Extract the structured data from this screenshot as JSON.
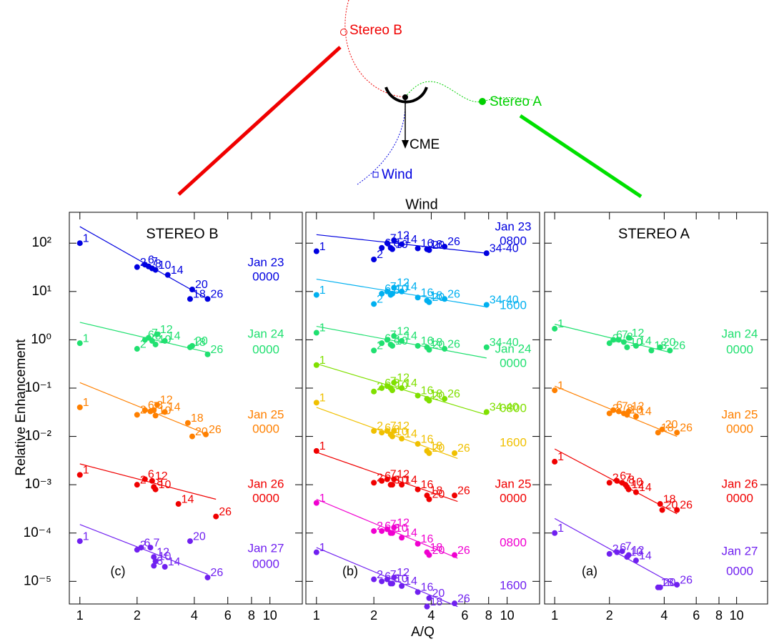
{
  "diagram": {
    "stereo_b": "Stereo B",
    "stereo_a": "Stereo A",
    "cme": "CME",
    "wind": "Wind"
  },
  "chart_data": [
    {
      "type": "scatter",
      "title": "STEREO B",
      "panel_label": "(c)",
      "y_label": "Relative Enhancement",
      "log_x": true,
      "log_y": true,
      "xlim": [
        0.88,
        14.8
      ],
      "ylim": [
        3.4e-06,
        436
      ],
      "xticks": [
        1,
        2,
        4,
        6,
        8,
        10
      ],
      "yticks": [
        {
          "value": 100,
          "label": "10²"
        },
        {
          "value": 10,
          "label": "10¹"
        },
        {
          "value": 1,
          "label": "10⁰"
        },
        {
          "value": 0.1,
          "label": "10⁻¹"
        },
        {
          "value": 0.01,
          "label": "10⁻²"
        },
        {
          "value": 0.001,
          "label": "10⁻³"
        },
        {
          "value": 0.0001,
          "label": "10⁻⁴"
        },
        {
          "value": 1e-05,
          "label": "10⁻⁵"
        }
      ],
      "series": [
        {
          "date": "Jan 23",
          "time": "0000",
          "color": "#0000e0",
          "x": [
            1,
            2,
            2.2,
            2.3,
            2.4,
            2.5,
            2.9,
            3.8,
            3.9,
            4.7
          ],
          "values": [
            100,
            32,
            36,
            33,
            30,
            28,
            22,
            7,
            11,
            7
          ],
          "point_labels": [
            "1",
            "2",
            "6",
            "7",
            "8",
            "10",
            "14",
            "18",
            "20",
            "26"
          ],
          "fit_x": [
            1,
            4.7
          ],
          "fit_values": [
            220,
            7
          ]
        },
        {
          "date": "Jan 24",
          "time": "0000",
          "color": "#20e070",
          "x": [
            1,
            2,
            2.2,
            2.3,
            2.4,
            2.5,
            2.55,
            2.8,
            3.8,
            3.9,
            4.7
          ],
          "values": [
            0.85,
            0.65,
            1.0,
            1.1,
            0.95,
            0.8,
            1.3,
            0.95,
            0.7,
            0.75,
            0.5
          ],
          "point_labels": [
            "1",
            "2",
            "6",
            "7",
            "8",
            "10",
            "12",
            "14",
            "18",
            "20",
            "26"
          ],
          "fit_x": [
            1,
            4.7
          ],
          "fit_values": [
            2.3,
            0.55
          ]
        },
        {
          "date": "Jan 25",
          "time": "0000",
          "color": "#ff8000",
          "x": [
            1,
            2,
            2.2,
            2.35,
            2.45,
            2.5,
            2.55,
            2.8,
            3.7,
            3.9,
            4.6
          ],
          "values": [
            0.04,
            0.028,
            0.035,
            0.033,
            0.035,
            0.027,
            0.045,
            0.032,
            0.019,
            0.01,
            0.011
          ],
          "point_labels": [
            "1",
            "2",
            "6",
            "7",
            "8",
            "10",
            "12",
            "14",
            "18",
            "20",
            "26"
          ],
          "fit_x": [
            1,
            4.7
          ],
          "fit_values": [
            0.13,
            0.011
          ]
        },
        {
          "date": "Jan 26",
          "time": "0000",
          "color": "#f00000",
          "x": [
            1,
            2,
            2.2,
            2.4,
            2.45,
            2.5,
            3.3,
            5.2
          ],
          "values": [
            0.0016,
            0.001,
            0.0013,
            0.0012,
            0.0009,
            0.0008,
            0.0004,
            0.00022
          ],
          "point_labels": [
            "1",
            "2",
            "6",
            "12",
            "8",
            "10",
            "14",
            "26"
          ],
          "fit_x": [
            1,
            5.2
          ],
          "fit_values": [
            0.0027,
            0.0005
          ]
        },
        {
          "date": "Jan 27",
          "time": "0000",
          "color": "#7020f0",
          "x": [
            1,
            2,
            2.1,
            2.35,
            2.45,
            2.45,
            2.5,
            2.8,
            3.8,
            4.7
          ],
          "values": [
            6.8e-05,
            4.5e-05,
            5e-05,
            5e-05,
            3.2e-05,
            2.1e-05,
            2.6e-05,
            2e-05,
            6.8e-05,
            1.2e-05
          ],
          "point_labels": [
            "1",
            "2",
            "6",
            "7",
            "12",
            "8",
            "10",
            "14",
            "20",
            "26"
          ],
          "fit_x": [
            1,
            4.7
          ],
          "fit_values": [
            0.00015,
            1.4e-05
          ]
        }
      ]
    },
    {
      "type": "scatter",
      "title": "Wind",
      "panel_label": "(b)",
      "x_label": "A/Q",
      "log_x": true,
      "log_y": true,
      "xlim": [
        0.88,
        14.8
      ],
      "ylim": [
        3.4e-06,
        436
      ],
      "xticks": [
        1,
        2,
        4,
        6,
        8,
        10
      ],
      "series": [
        {
          "date": "Jan 23",
          "time": "0800",
          "color": "#0000e0",
          "x": [
            1,
            2,
            2.2,
            2.35,
            2.45,
            2.5,
            2.55,
            2.8,
            3.4,
            3.8,
            3.9,
            4.7,
            7.8
          ],
          "values": [
            68,
            46,
            80,
            100,
            80,
            75,
            115,
            95,
            78,
            75,
            72,
            85,
            62
          ],
          "point_labels": [
            "1",
            "2",
            "6",
            "7",
            "8",
            "10",
            "12",
            "14",
            "16",
            "18",
            "20",
            "26",
            "34-40"
          ],
          "fit_x": [
            1,
            7.8
          ],
          "fit_values": [
            150,
            62
          ]
        },
        {
          "time": "1600",
          "color": "#00b0f0",
          "x": [
            1,
            2,
            2.2,
            2.35,
            2.45,
            2.5,
            2.55,
            2.8,
            3.4,
            3.8,
            3.9,
            4.7,
            7.8
          ],
          "values": [
            8.5,
            5.5,
            9,
            10,
            8.5,
            9,
            12,
            10,
            7.5,
            6.5,
            6,
            7,
            5.3
          ],
          "point_labels": [
            "1",
            "2",
            "6",
            "7",
            "8",
            "10",
            "12",
            "14",
            "16",
            "18",
            "20",
            "26",
            "34-40"
          ],
          "fit_x": [
            1,
            7.8
          ],
          "fit_values": [
            18,
            4.8
          ]
        },
        {
          "date": "Jan 24",
          "time": "0000",
          "color": "#20e070",
          "x": [
            1,
            2,
            2.2,
            2.35,
            2.45,
            2.5,
            2.55,
            2.8,
            3.4,
            3.8,
            3.9,
            4.7,
            7.8
          ],
          "values": [
            1.4,
            0.6,
            0.85,
            1.0,
            0.8,
            0.75,
            1.2,
            0.95,
            0.75,
            0.7,
            0.62,
            0.65,
            0.7
          ],
          "point_labels": [
            "1",
            "2",
            "6",
            "7",
            "8",
            "10",
            "12",
            "14",
            "16",
            "18",
            "20",
            "26",
            "34-40"
          ],
          "fit_x": [
            1,
            7.8
          ],
          "fit_values": [
            1.9,
            0.42
          ]
        },
        {
          "time": "0800",
          "color": "#80e000",
          "x": [
            1,
            2,
            2.2,
            2.35,
            2.45,
            2.5,
            2.55,
            2.8,
            3.4,
            3.8,
            3.9,
            4.7,
            7.8
          ],
          "values": [
            0.3,
            0.085,
            0.1,
            0.11,
            0.1,
            0.09,
            0.13,
            0.1,
            0.07,
            0.06,
            0.055,
            0.06,
            0.032
          ],
          "point_labels": [
            "1",
            "2",
            "6",
            "7",
            "8",
            "10",
            "12",
            "14",
            "16",
            "18",
            "20",
            "26",
            "34-40"
          ],
          "fit_x": [
            1,
            7.8
          ],
          "fit_values": [
            0.32,
            0.028
          ]
        },
        {
          "time": "1600",
          "color": "#f0c000",
          "x": [
            1,
            2,
            2.2,
            2.35,
            2.45,
            2.5,
            2.55,
            2.8,
            3.4,
            3.8,
            3.9,
            5.3
          ],
          "values": [
            0.05,
            0.013,
            0.012,
            0.013,
            0.011,
            0.01,
            0.013,
            0.009,
            0.007,
            0.005,
            0.0045,
            0.0045
          ],
          "point_labels": [
            "1",
            "2",
            "6",
            "7",
            "8",
            "10",
            "12",
            "14",
            "16",
            "18",
            "20",
            "26"
          ],
          "fit_x": [
            1,
            5.5
          ],
          "fit_values": [
            0.04,
            0.0035
          ]
        },
        {
          "date": "Jan 25",
          "time": "0000",
          "color": "#f00000",
          "x": [
            1,
            2,
            2.2,
            2.35,
            2.45,
            2.5,
            2.55,
            2.8,
            3.4,
            3.8,
            3.9,
            5.3
          ],
          "values": [
            0.005,
            0.0011,
            0.0012,
            0.0013,
            0.001,
            0.001,
            0.0013,
            0.001,
            0.0008,
            0.0006,
            0.0005,
            0.0006
          ],
          "point_labels": [
            "1",
            "2",
            "6",
            "7",
            "8",
            "10",
            "12",
            "14",
            "16",
            "18",
            "20",
            "26"
          ],
          "fit_x": [
            1,
            5.5
          ],
          "fit_values": [
            0.0047,
            0.00045
          ]
        },
        {
          "time": "0800",
          "color": "#f000d0",
          "x": [
            1,
            2,
            2.2,
            2.35,
            2.45,
            2.5,
            2.55,
            2.8,
            3.4,
            3.8,
            3.9,
            5.3
          ],
          "values": [
            0.00042,
            0.00011,
            0.00011,
            0.00012,
            0.0001,
            0.0001,
            0.00013,
            8e-05,
            6e-05,
            4e-05,
            3.5e-05,
            3.5e-05
          ],
          "point_labels": [
            "1",
            "2",
            "6",
            "7",
            "8",
            "10",
            "12",
            "14",
            "16",
            "18",
            "20",
            "26"
          ],
          "fit_x": [
            1,
            5.5
          ],
          "fit_values": [
            0.0005,
            3e-05
          ]
        },
        {
          "time": "1600",
          "color": "#7020f0",
          "x": [
            1,
            2,
            2.2,
            2.35,
            2.45,
            2.5,
            2.55,
            2.8,
            3.4,
            3.8,
            3.9,
            5.3
          ],
          "values": [
            4e-05,
            1.1e-05,
            1e-05,
            1.1e-05,
            9e-06,
            9e-06,
            1.2e-05,
            8e-06,
            6e-06,
            3e-06,
            4.5e-06,
            3.5e-06
          ],
          "point_labels": [
            "1",
            "2",
            "6",
            "7",
            "8",
            "10",
            "12",
            "14",
            "16",
            "18",
            "20",
            "26"
          ],
          "fit_x": [
            1,
            5.5
          ],
          "fit_values": [
            5e-05,
            3e-06
          ]
        }
      ]
    },
    {
      "type": "scatter",
      "title": "STEREO A",
      "panel_label": "(a)",
      "log_x": true,
      "log_y": true,
      "xlim": [
        0.88,
        14.8
      ],
      "ylim": [
        3.4e-06,
        436
      ],
      "xticks": [
        1,
        2,
        4,
        6,
        8,
        10
      ],
      "series": [
        {
          "date": "Jan 24",
          "time": "0000",
          "color": "#20e070",
          "x": [
            1,
            2,
            2.1,
            2.25,
            2.4,
            2.5,
            2.55,
            2.8,
            3.4,
            3.8,
            4.3
          ],
          "values": [
            1.7,
            0.85,
            1.0,
            1.0,
            0.9,
            0.7,
            1.1,
            0.75,
            0.6,
            0.7,
            0.6
          ],
          "point_labels": [
            "1",
            "2",
            "6",
            "7",
            "8",
            "10",
            "12",
            "14",
            "18",
            "20",
            "26"
          ],
          "fit_x": [
            1,
            4.3
          ],
          "fit_values": [
            2.1,
            0.55
          ]
        },
        {
          "date": "Jan 25",
          "time": "0000",
          "color": "#ff8000",
          "x": [
            1,
            2,
            2.1,
            2.25,
            2.4,
            2.5,
            2.55,
            2.8,
            3.7,
            3.9,
            4.7
          ],
          "values": [
            0.09,
            0.03,
            0.035,
            0.033,
            0.03,
            0.028,
            0.033,
            0.026,
            0.012,
            0.014,
            0.012
          ],
          "point_labels": [
            "1",
            "2",
            "6",
            "7",
            "8",
            "10",
            "12",
            "14",
            "18",
            "20",
            "26"
          ],
          "fit_x": [
            1,
            4.7
          ],
          "fit_values": [
            0.11,
            0.01
          ]
        },
        {
          "date": "Jan 26",
          "time": "0000",
          "color": "#f00000",
          "x": [
            1,
            2,
            2.2,
            2.35,
            2.45,
            2.5,
            2.55,
            2.8,
            3.8,
            3.9,
            4.7
          ],
          "values": [
            0.003,
            0.0011,
            0.0012,
            0.0011,
            0.001,
            0.0009,
            0.0008,
            0.0007,
            0.0004,
            0.0003,
            0.0003
          ],
          "point_labels": [
            "1",
            "2",
            "6",
            "7",
            "8",
            "10",
            "12",
            "14",
            "18",
            "20",
            "26"
          ],
          "fit_x": [
            1,
            4.7
          ],
          "fit_values": [
            0.0055,
            0.00025
          ]
        },
        {
          "date": "Jan 27",
          "time": "0000",
          "color": "#7020f0",
          "x": [
            1,
            2,
            2.2,
            2.35,
            2.5,
            2.55,
            2.8,
            3.7,
            3.8,
            4.7
          ],
          "values": [
            0.0001,
            3.7e-05,
            4e-05,
            4.2e-05,
            3.2e-05,
            3.5e-05,
            2.7e-05,
            7.5e-06,
            7.5e-06,
            8.5e-06
          ],
          "point_labels": [
            "1",
            "2",
            "6",
            "7",
            "10",
            "12",
            "14",
            "18",
            "20",
            "26"
          ],
          "fit_x": [
            1,
            4.7
          ],
          "fit_values": [
            0.0002,
            8e-06
          ]
        }
      ]
    }
  ]
}
